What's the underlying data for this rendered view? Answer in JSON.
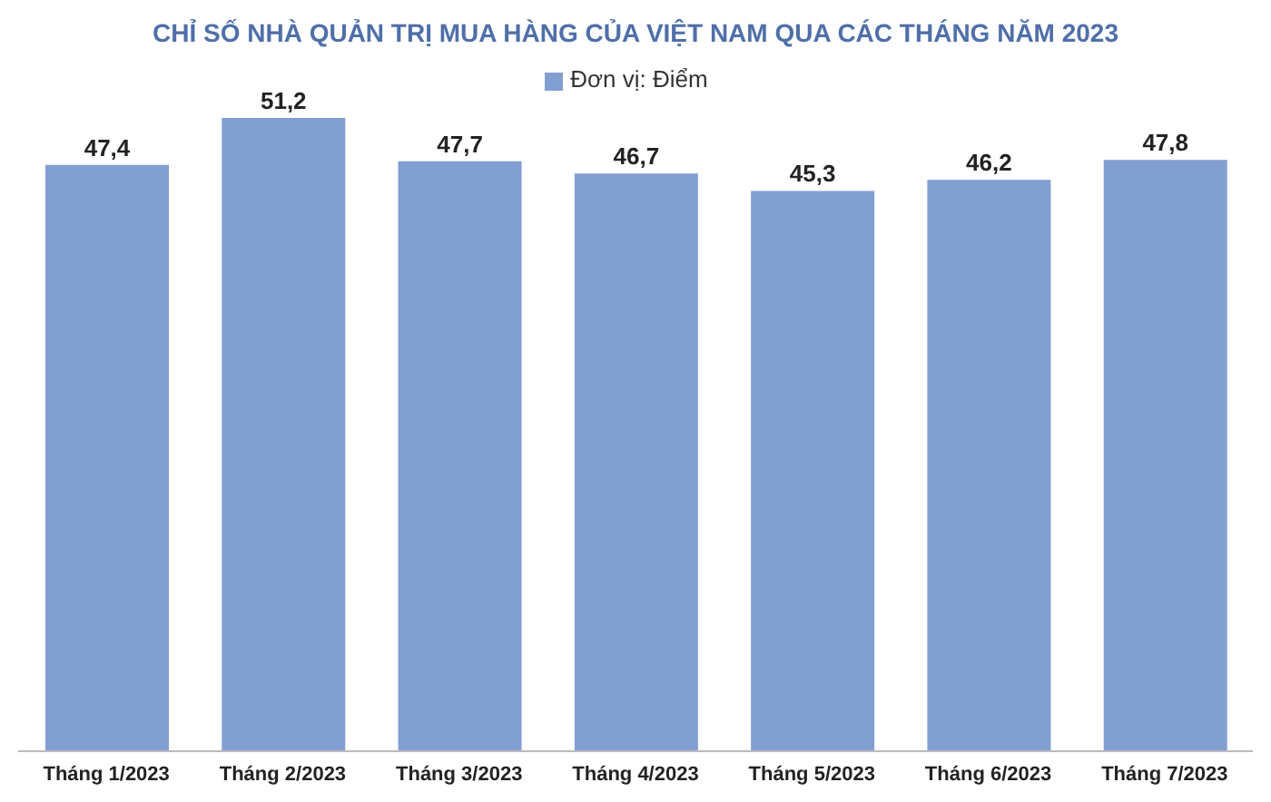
{
  "chart_data": {
    "type": "bar",
    "title": "CHỈ SỐ NHÀ QUẢN TRỊ MUA HÀNG CỦA VIỆT NAM QUA CÁC THÁNG NĂM 2023",
    "categories": [
      "Tháng 1/2023",
      "Tháng 2/2023",
      "Tháng 3/2023",
      "Tháng 4/2023",
      "Tháng 5/2023",
      "Tháng 6/2023",
      "Tháng 7/2023"
    ],
    "series": [
      {
        "name": "Đơn vị: Điểm",
        "color": "#829fd1",
        "values": [
          47.4,
          51.2,
          47.7,
          46.7,
          45.3,
          46.2,
          47.8
        ],
        "value_labels": [
          "47,4",
          "51,2",
          "47,7",
          "46,7",
          "45,3",
          "46,2",
          "47,8"
        ]
      }
    ],
    "legend": "top"
  }
}
